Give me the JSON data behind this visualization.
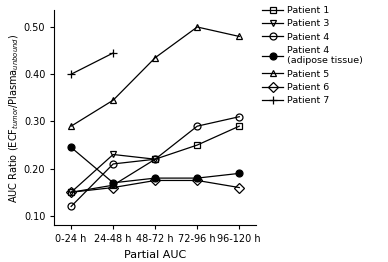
{
  "x_labels": [
    "0-24 h",
    "24-48 h",
    "48-72 h",
    "72-96 h",
    "96-120 h"
  ],
  "x_positions": [
    0,
    1,
    2,
    3,
    4
  ],
  "series": [
    {
      "label": "Patient 1",
      "marker": "s",
      "fillstyle": "none",
      "color": "black",
      "markersize": 5,
      "linestyle": "solid",
      "y": [
        0.15,
        0.165,
        0.22,
        0.25,
        0.29
      ]
    },
    {
      "label": "Patient 3",
      "marker": "v",
      "fillstyle": "none",
      "color": "black",
      "markersize": 5,
      "linestyle": "solid",
      "y": [
        0.15,
        0.23,
        0.22,
        null,
        null
      ]
    },
    {
      "label": "Patient 4",
      "marker": "o",
      "fillstyle": "none",
      "color": "black",
      "markersize": 5,
      "linestyle": "solid",
      "y": [
        0.12,
        0.21,
        0.22,
        0.29,
        0.31
      ]
    },
    {
      "label": "Patient 4\n(adipose tissue)",
      "marker": "o",
      "fillstyle": "full",
      "color": "black",
      "markersize": 5,
      "linestyle": "solid",
      "y": [
        0.245,
        0.17,
        0.18,
        0.18,
        0.19
      ]
    },
    {
      "label": "Patient 5",
      "marker": "^",
      "fillstyle": "none",
      "color": "black",
      "markersize": 5,
      "linestyle": "solid",
      "y": [
        0.29,
        0.345,
        0.435,
        0.5,
        0.48
      ]
    },
    {
      "label": "Patient 6",
      "marker": "D",
      "fillstyle": "none",
      "color": "black",
      "markersize": 5,
      "linestyle": "solid",
      "y": [
        0.15,
        0.16,
        0.175,
        0.175,
        0.16
      ]
    },
    {
      "label": "Patient 7",
      "marker": "P",
      "fillstyle": "full",
      "color": "black",
      "markersize": 6,
      "linestyle": "solid",
      "y": [
        0.4,
        0.445,
        null,
        null,
        null
      ]
    }
  ],
  "ylabel": "AUC Ratio (ECF$_{tumor}$/Plasma$_{unbound}$)",
  "xlabel": "Partial AUC",
  "ylim": [
    0.08,
    0.535
  ],
  "yticks": [
    0.1,
    0.2,
    0.3,
    0.4,
    0.5
  ],
  "ytick_labels": [
    "0.10",
    "0.20",
    "0.30",
    "0.40",
    "0.50"
  ],
  "legend_fontsize": 6.8,
  "axis_fontsize": 8,
  "ylabel_fontsize": 7,
  "tick_fontsize": 7,
  "background_color": "#ffffff",
  "linewidth": 0.9,
  "markeredgewidth": 0.9
}
